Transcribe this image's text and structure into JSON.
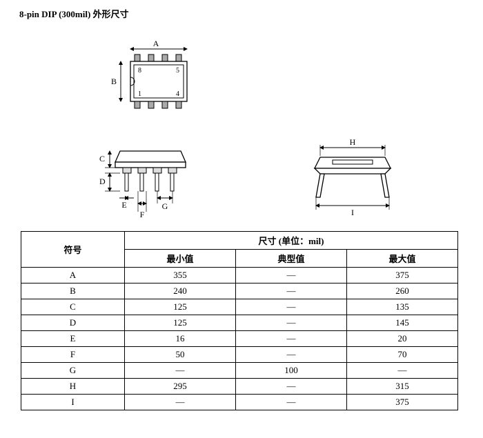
{
  "title": "8-pin DIP (300mil)  外形尺寸",
  "diagram": {
    "dims": {
      "A": "A",
      "B": "B",
      "C": "C",
      "D": "D",
      "E": "E",
      "F": "F",
      "G": "G",
      "H": "H",
      "I": "I"
    },
    "pins": {
      "p1": "1",
      "p4": "4",
      "p5": "5",
      "p8": "8"
    },
    "stroke": "#000000",
    "hatch": "#cccccc"
  },
  "table": {
    "header_symbol": "符号",
    "header_size": "尺寸 (单位：mil)",
    "header_min": "最小值",
    "header_typ": "典型值",
    "header_max": "最大值",
    "rows": [
      {
        "sym": "A",
        "min": "355",
        "typ": "—",
        "max": "375"
      },
      {
        "sym": "B",
        "min": "240",
        "typ": "—",
        "max": "260"
      },
      {
        "sym": "C",
        "min": "125",
        "typ": "—",
        "max": "135"
      },
      {
        "sym": "D",
        "min": "125",
        "typ": "—",
        "max": "145"
      },
      {
        "sym": "E",
        "min": "16",
        "typ": "—",
        "max": "20"
      },
      {
        "sym": "F",
        "min": "50",
        "typ": "—",
        "max": "70"
      },
      {
        "sym": "G",
        "min": "—",
        "typ": "100",
        "max": "—"
      },
      {
        "sym": "H",
        "min": "295",
        "typ": "—",
        "max": "315"
      },
      {
        "sym": "I",
        "min": "—",
        "typ": "—",
        "max": "375"
      }
    ]
  }
}
